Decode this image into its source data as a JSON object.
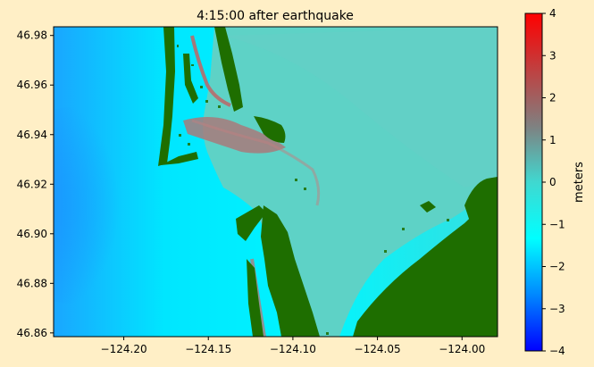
{
  "figure": {
    "background": "#ffefc6"
  },
  "chart_data": {
    "type": "heatmap",
    "title": "4:15:00 after earthquake",
    "xlabel": "",
    "ylabel": "",
    "xlim": [
      -124.2415,
      -123.979
    ],
    "ylim": [
      46.8585,
      46.9835
    ],
    "x_ticks": [
      -124.2,
      -124.15,
      -124.1,
      -124.05,
      -124.0
    ],
    "x_tick_labels": [
      "−124.20",
      "−124.15",
      "−124.10",
      "−124.05",
      "−124.00"
    ],
    "y_ticks": [
      46.86,
      46.88,
      46.9,
      46.92,
      46.94,
      46.96,
      46.98
    ],
    "y_tick_labels": [
      "46.86",
      "46.88",
      "46.90",
      "46.92",
      "46.94",
      "46.96",
      "46.98"
    ],
    "grid": false,
    "colorbar": {
      "label": "meters",
      "range": [
        -4,
        4
      ],
      "ticks": [
        4,
        3,
        2,
        1,
        0,
        -1,
        -2,
        -3,
        -4
      ],
      "tick_labels": [
        "4",
        "3",
        "2",
        "1",
        "0",
        "−1",
        "−2",
        "−3",
        "−4"
      ],
      "colors": [
        "#0000ff",
        "#0088ff",
        "#00ffff",
        "#40d8d0",
        "#808080",
        "#c04040",
        "#ff0000"
      ]
    },
    "land_color": "#1e6e00",
    "water_colors": {
      "ocean": "#00ffff",
      "bay": "#5bd0c4",
      "channel": "#b07070"
    }
  }
}
